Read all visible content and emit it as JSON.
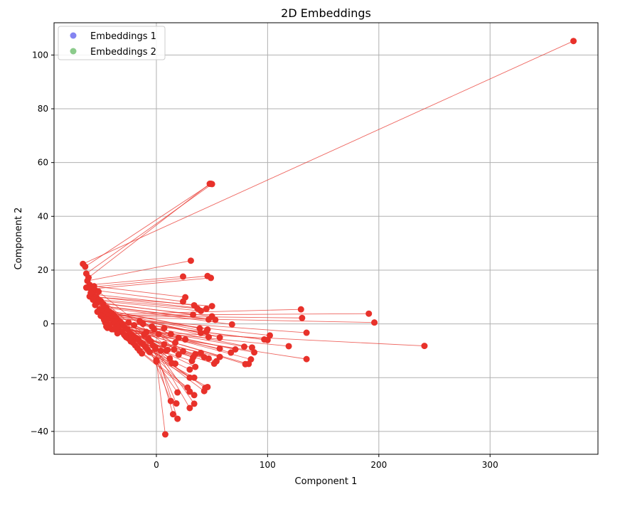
{
  "chart_data": {
    "type": "scatter",
    "title": "2D Embeddings",
    "xlabel": "Component 1",
    "ylabel": "Component 2",
    "xlim": [
      -92,
      397
    ],
    "ylim": [
      -48.5,
      112
    ],
    "x_ticks": [
      0,
      100,
      200,
      300
    ],
    "y_ticks": [
      -40,
      -20,
      0,
      20,
      40,
      60,
      80,
      100
    ],
    "x_tick_labels": [
      "0",
      "100",
      "200",
      "300"
    ],
    "y_tick_labels": [
      "−40",
      "−20",
      "0",
      "20",
      "40",
      "60",
      "80",
      "100"
    ],
    "grid": true,
    "legend_position": "top-left",
    "series": [
      {
        "name": "Embeddings 1",
        "color": "#1f1fe6",
        "points": [
          [
            -66,
            22.3
          ],
          [
            -64,
            21.3
          ],
          [
            -63,
            18.7
          ],
          [
            -61,
            17.2
          ],
          [
            -62,
            16.0
          ],
          [
            -60,
            14.5
          ],
          [
            -63,
            13.5
          ],
          [
            -58,
            13.0
          ],
          [
            -56,
            14.0
          ],
          [
            -55,
            12.5
          ],
          [
            -57,
            11.0
          ],
          [
            -60,
            10.2
          ],
          [
            -54,
            10.0
          ],
          [
            -52,
            9.0
          ],
          [
            -50,
            8.5
          ],
          [
            -53,
            8.0
          ],
          [
            -48,
            7.5
          ],
          [
            -55,
            7.0
          ],
          [
            -47,
            6.5
          ],
          [
            -45,
            6.0
          ],
          [
            -51,
            5.5
          ],
          [
            -44,
            5.0
          ],
          [
            -49,
            4.8
          ],
          [
            -42,
            4.5
          ],
          [
            -53,
            4.5
          ],
          [
            -40,
            4.0
          ],
          [
            -46,
            3.5
          ],
          [
            -43,
            3.0
          ],
          [
            -38,
            3.2
          ],
          [
            -48,
            2.5
          ],
          [
            -41,
            2.0
          ],
          [
            -36,
            2.2
          ],
          [
            -44,
            1.5
          ],
          [
            -39,
            1.0
          ],
          [
            -34,
            1.2
          ],
          [
            -46,
            0.5
          ],
          [
            -37,
            0.0
          ],
          [
            -32,
            0.5
          ],
          [
            -42,
            -0.5
          ],
          [
            -30,
            -0.5
          ],
          [
            -35,
            -1.0
          ],
          [
            -28,
            -1.5
          ],
          [
            -44,
            -1.5
          ],
          [
            -40,
            -2.0
          ],
          [
            -33,
            -2.5
          ],
          [
            -26,
            -2.0
          ],
          [
            -31,
            -3.0
          ],
          [
            -24,
            -3.5
          ],
          [
            -29,
            -4.0
          ],
          [
            -22,
            -4.0
          ],
          [
            -27,
            -5.0
          ],
          [
            -20,
            -5.0
          ],
          [
            -25,
            -5.5
          ],
          [
            -18,
            -5.5
          ],
          [
            -23,
            -6.5
          ],
          [
            -16,
            -6.0
          ],
          [
            -21,
            -7.0
          ],
          [
            -14,
            -7.0
          ],
          [
            -19,
            -8.0
          ],
          [
            -12,
            -7.5
          ],
          [
            -17,
            -9.0
          ],
          [
            -10,
            -8.5
          ],
          [
            -15,
            -10.0
          ],
          [
            -8,
            -9.5
          ],
          [
            -13,
            -11.0
          ],
          [
            -6,
            -10.5
          ],
          [
            -11,
            -4.0
          ],
          [
            -9,
            -3.0
          ],
          [
            -7,
            -5.5
          ],
          [
            -5,
            -6.5
          ],
          [
            -3,
            -8.0
          ],
          [
            -1,
            -9.0
          ],
          [
            0,
            -13.5
          ],
          [
            0,
            -14.0
          ],
          [
            -2,
            -2.0
          ],
          [
            -4,
            -1.0
          ],
          [
            -12,
            0.0
          ],
          [
            -15,
            1.0
          ],
          [
            -20,
            -0.5
          ],
          [
            -25,
            0.5
          ],
          [
            -52,
            12.0
          ],
          [
            -57,
            9.0
          ],
          [
            -59,
            11.5
          ],
          [
            -61,
            13.5
          ],
          [
            -50,
            3.0
          ],
          [
            -47,
            1.5
          ],
          [
            -45,
            -1.0
          ],
          [
            -38,
            -2.0
          ],
          [
            -35,
            -3.5
          ],
          [
            -28,
            -4.5
          ]
        ]
      },
      {
        "name": "Embeddings 2",
        "color": "#2ca02c",
        "points": [
          [
            375,
            105.2
          ],
          [
            49,
            52.1
          ],
          [
            50,
            52.0
          ],
          [
            48,
            52.1
          ],
          [
            31,
            23.5
          ],
          [
            24,
            17.6
          ],
          [
            46,
            17.8
          ],
          [
            49,
            17.1
          ],
          [
            26,
            9.9
          ],
          [
            24,
            8.3
          ],
          [
            34,
            6.9
          ],
          [
            50,
            6.6
          ],
          [
            45,
            5.6
          ],
          [
            37,
            5.7
          ],
          [
            40,
            4.8
          ],
          [
            33,
            3.4
          ],
          [
            50,
            2.8
          ],
          [
            53,
            1.5
          ],
          [
            47,
            1.6
          ],
          [
            68,
            -0.2
          ],
          [
            39,
            -1.7
          ],
          [
            46,
            -2.1
          ],
          [
            45,
            -2.9
          ],
          [
            47,
            -4.9
          ],
          [
            40,
            -3.4
          ],
          [
            57,
            -5.1
          ],
          [
            130,
            5.4
          ],
          [
            131,
            2.2
          ],
          [
            191,
            3.8
          ],
          [
            196,
            0.5
          ],
          [
            135,
            -3.3
          ],
          [
            102,
            -4.3
          ],
          [
            100,
            -6.0
          ],
          [
            97,
            -5.8
          ],
          [
            86,
            -8.8
          ],
          [
            79,
            -8.5
          ],
          [
            71,
            -9.5
          ],
          [
            67,
            -10.7
          ],
          [
            88,
            -10.6
          ],
          [
            85,
            -13.2
          ],
          [
            83,
            -14.9
          ],
          [
            80,
            -15.0
          ],
          [
            119,
            -8.3
          ],
          [
            135,
            -13.1
          ],
          [
            241,
            -8.2
          ],
          [
            57,
            -9.2
          ],
          [
            40,
            -10.8
          ],
          [
            35,
            -11.3
          ],
          [
            57,
            -12.3
          ],
          [
            43,
            -12.4
          ],
          [
            47,
            -12.9
          ],
          [
            52,
            -14.8
          ],
          [
            54,
            -13.9
          ],
          [
            33,
            -12.5
          ],
          [
            32,
            -13.8
          ],
          [
            35,
            -16.0
          ],
          [
            30,
            -17.0
          ],
          [
            30,
            -20.0
          ],
          [
            34,
            -20.0
          ],
          [
            44,
            -23.8
          ],
          [
            46,
            -23.5
          ],
          [
            43,
            -25.0
          ],
          [
            28,
            -23.7
          ],
          [
            30,
            -25.2
          ],
          [
            34,
            -26.5
          ],
          [
            19,
            -25.5
          ],
          [
            13,
            -28.7
          ],
          [
            18,
            -29.6
          ],
          [
            34,
            -29.7
          ],
          [
            30,
            -31.3
          ],
          [
            15,
            -33.6
          ],
          [
            19,
            -35.3
          ],
          [
            8,
            -41.1
          ],
          [
            20,
            -5.2
          ],
          [
            16,
            -9.5
          ],
          [
            24,
            -10.2
          ],
          [
            26,
            -5.8
          ],
          [
            13,
            -3.8
          ],
          [
            17,
            -7.0
          ],
          [
            10,
            -9.7
          ],
          [
            7,
            -7.6
          ],
          [
            12,
            -12.9
          ],
          [
            14,
            -14.6
          ],
          [
            17,
            -14.8
          ],
          [
            9,
            -10.0
          ],
          [
            20,
            -11.5
          ],
          [
            4,
            -10.0
          ],
          [
            -1,
            -9.3
          ],
          [
            2,
            -3.8
          ],
          [
            7,
            -1.6
          ]
        ]
      }
    ],
    "connection_color": "#e8312a",
    "marker_color": "#e8312a"
  }
}
